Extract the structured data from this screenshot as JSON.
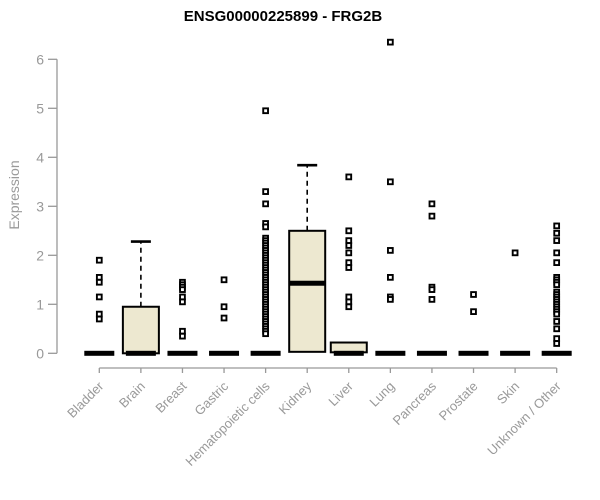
{
  "chart_data": {
    "type": "boxplot",
    "title": "ENSG00000225899 - FRG2B",
    "ylabel": "Expression",
    "ylim": [
      0,
      6
    ],
    "yticks": [
      0,
      1,
      2,
      3,
      4,
      5,
      6
    ],
    "grid": false,
    "legend": "none",
    "categories": [
      "Bladder",
      "Brain",
      "Breast",
      "Gastric",
      "Hematopoietic cells",
      "Kidney",
      "Liver",
      "Lung",
      "Pancreas",
      "Prostate",
      "Skin",
      "Unknown / Other"
    ],
    "boxes": [
      {
        "label": "Bladder",
        "q1": 0,
        "median": 0,
        "q3": 0,
        "whisker_low": 0,
        "whisker_high": 0,
        "outliers": [
          1.9,
          1.55,
          1.45,
          1.15,
          0.8,
          0.7
        ]
      },
      {
        "label": "Brain",
        "q1": 0,
        "median": 0,
        "q3": 0.95,
        "whisker_low": 0,
        "whisker_high": 2.28,
        "outliers": []
      },
      {
        "label": "Breast",
        "q1": 0,
        "median": 0,
        "q3": 0,
        "whisker_low": 0,
        "whisker_high": 0,
        "outliers": [
          1.45,
          1.4,
          1.35,
          1.3,
          1.15,
          1.05,
          0.45,
          0.35
        ]
      },
      {
        "label": "Gastric",
        "q1": 0,
        "median": 0,
        "q3": 0,
        "whisker_low": 0,
        "whisker_high": 0,
        "outliers": [
          1.5,
          0.95,
          0.72
        ]
      },
      {
        "label": "Hematopoietic cells",
        "q1": 0,
        "median": 0,
        "q3": 0,
        "whisker_low": 0,
        "whisker_high": 0,
        "outliers": [
          4.95,
          3.3,
          3.05,
          2.65,
          2.58,
          2.35,
          2.3,
          2.25,
          2.2,
          2.15,
          2.1,
          2.05,
          2.0,
          1.95,
          1.9,
          1.85,
          1.8,
          1.75,
          1.7,
          1.65,
          1.6,
          1.55,
          1.5,
          1.45,
          1.4,
          1.35,
          1.3,
          1.25,
          1.2,
          1.15,
          1.1,
          1.05,
          1.0,
          0.95,
          0.9,
          0.85,
          0.8,
          0.75,
          0.7,
          0.65,
          0.6,
          0.55,
          0.5,
          0.45,
          0.4
        ]
      },
      {
        "label": "Kidney",
        "q1": 0.03,
        "median": 1.43,
        "q3": 2.5,
        "whisker_low": 0.03,
        "whisker_high": 3.84,
        "outliers": []
      },
      {
        "label": "Liver",
        "q1": 0.02,
        "median": 0,
        "q3": 0.22,
        "whisker_low": 0,
        "whisker_high": 0.22,
        "outliers": [
          3.6,
          2.5,
          2.3,
          2.2,
          2.05,
          1.85,
          1.75,
          1.15,
          1.05,
          0.95
        ]
      },
      {
        "label": "Lung",
        "q1": 0,
        "median": 0,
        "q3": 0,
        "whisker_low": 0,
        "whisker_high": 0,
        "outliers": [
          6.35,
          3.5,
          2.1,
          1.55,
          1.15,
          1.1
        ]
      },
      {
        "label": "Pancreas",
        "q1": 0,
        "median": 0,
        "q3": 0,
        "whisker_low": 0,
        "whisker_high": 0,
        "outliers": [
          3.05,
          2.8,
          1.35,
          1.3,
          1.1
        ]
      },
      {
        "label": "Prostate",
        "q1": 0,
        "median": 0,
        "q3": 0,
        "whisker_low": 0,
        "whisker_high": 0,
        "outliers": [
          1.2,
          0.85
        ]
      },
      {
        "label": "Skin",
        "q1": 0,
        "median": 0,
        "q3": 0,
        "whisker_low": 0,
        "whisker_high": 0,
        "outliers": [
          2.05
        ]
      },
      {
        "label": "Unknown / Other",
        "q1": 0,
        "median": 0,
        "q3": 0,
        "whisker_low": 0,
        "whisker_high": 0,
        "outliers": [
          2.6,
          2.45,
          2.3,
          2.05,
          1.85,
          1.55,
          1.5,
          1.45,
          1.4,
          1.25,
          1.2,
          1.15,
          1.1,
          1.05,
          1.0,
          0.95,
          0.9,
          0.85,
          0.8,
          0.65,
          0.5,
          0.3,
          0.2
        ]
      }
    ],
    "colors": {
      "box_fill": "#EDE8D0",
      "box_border": "#000000",
      "median": "#000000",
      "whisker": "#000000",
      "outlier_border": "#000000",
      "outlier_fill": "#ffffff",
      "axis": "#999999",
      "tick_label": "#999999",
      "title": "#000000"
    }
  }
}
